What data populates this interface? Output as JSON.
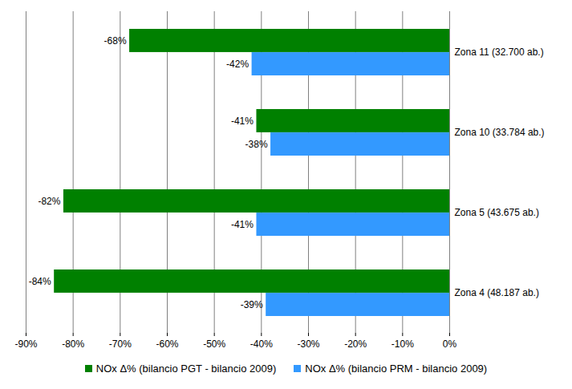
{
  "chart_data": {
    "type": "bar",
    "orientation": "horizontal",
    "categories": [
      "Zona 11 (32.700 ab.)",
      "Zona 10 (33.784 ab.)",
      "Zona 5 (43.675 ab.)",
      "Zona 4 (48.187 ab.)"
    ],
    "series": [
      {
        "name": "NOx Δ% (bilancio PGT - bilancio 2009)",
        "color": "#008000",
        "values": [
          -68,
          -41,
          -82,
          -84
        ],
        "value_labels": [
          "-68%",
          "-41%",
          "-82%",
          "-84%"
        ]
      },
      {
        "name": "NOx Δ% (bilancio PRM - bilancio 2009)",
        "color": "#3399ff",
        "values": [
          -42,
          -38,
          -41,
          -39
        ],
        "value_labels": [
          "-42%",
          "-38%",
          "-41%",
          "-39%"
        ]
      }
    ],
    "xlim": [
      -90,
      0
    ],
    "xticks": [
      {
        "value": -90,
        "label": "-90%"
      },
      {
        "value": -80,
        "label": "-80%"
      },
      {
        "value": -70,
        "label": "-70%"
      },
      {
        "value": -60,
        "label": "-60%"
      },
      {
        "value": -50,
        "label": "-50%"
      },
      {
        "value": -40,
        "label": "-40%"
      },
      {
        "value": -30,
        "label": "-30%"
      },
      {
        "value": -20,
        "label": "-20%"
      },
      {
        "value": -10,
        "label": "-10%"
      },
      {
        "value": 0,
        "label": "0%"
      }
    ],
    "grid": true,
    "legend": "bottom",
    "data_labels": true
  }
}
